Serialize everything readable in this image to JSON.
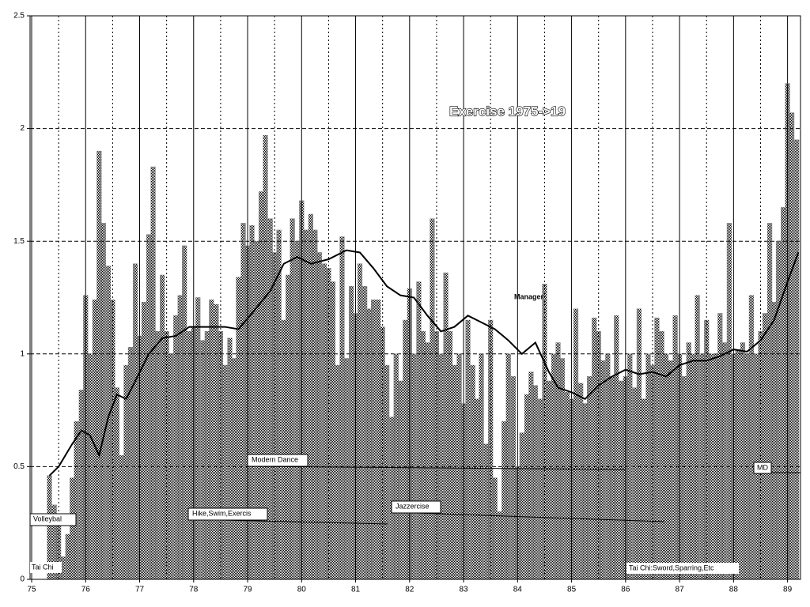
{
  "chart_data": [
    {
      "type": "bar",
      "title": "Exercise 1975->19",
      "color": "#808080",
      "xlim": [
        75,
        89.24
      ],
      "ylim": [
        0,
        2.5
      ],
      "xticks": [
        75,
        76,
        77,
        78,
        79,
        80,
        81,
        82,
        83,
        84,
        85,
        86,
        87,
        88,
        89
      ],
      "yticks": [
        0,
        0.5,
        1,
        1.5,
        2,
        2.5
      ],
      "grid": true,
      "annotations": [
        "Manager",
        "Modern Dance",
        "MD",
        "Jazzercise",
        "Hike,Swim,Exercis",
        "Volleybal",
        "Tai Chi",
        "Tai Chi:Sword,Sparring,Etc"
      ],
      "x": [
        75.33,
        75.42,
        75.5,
        75.58,
        75.67,
        75.75,
        75.83,
        75.92,
        76,
        76.08,
        76.17,
        76.25,
        76.33,
        76.42,
        76.5,
        76.58,
        76.67,
        76.75,
        76.83,
        76.92,
        77,
        77.08,
        77.17,
        77.25,
        77.33,
        77.42,
        77.5,
        77.58,
        77.67,
        77.75,
        77.83,
        77.92,
        78,
        78.08,
        78.17,
        78.25,
        78.33,
        78.42,
        78.5,
        78.58,
        78.67,
        78.75,
        78.83,
        78.92,
        79,
        79.08,
        79.17,
        79.25,
        79.33,
        79.42,
        79.5,
        79.58,
        79.67,
        79.75,
        79.83,
        79.92,
        80,
        80.08,
        80.17,
        80.25,
        80.33,
        80.42,
        80.5,
        80.58,
        80.67,
        80.75,
        80.83,
        80.92,
        81,
        81.08,
        81.17,
        81.25,
        81.33,
        81.42,
        81.5,
        81.58,
        81.67,
        81.75,
        81.83,
        81.92,
        82,
        82.08,
        82.17,
        82.25,
        82.33,
        82.42,
        82.5,
        82.58,
        82.67,
        82.75,
        82.83,
        82.92,
        83,
        83.08,
        83.17,
        83.25,
        83.33,
        83.42,
        83.5,
        83.58,
        83.67,
        83.75,
        83.83,
        83.92,
        84,
        84.08,
        84.17,
        84.25,
        84.33,
        84.42,
        84.5,
        84.58,
        84.67,
        84.75,
        84.83,
        84.92,
        85,
        85.08,
        85.17,
        85.25,
        85.33,
        85.42,
        85.5,
        85.58,
        85.67,
        85.75,
        85.83,
        85.92,
        86,
        86.08,
        86.17,
        86.25,
        86.33,
        86.42,
        86.5,
        86.58,
        86.67,
        86.75,
        86.83,
        86.92,
        87,
        87.08,
        87.17,
        87.25,
        87.33,
        87.42,
        87.5,
        87.58,
        87.67,
        87.75,
        87.83,
        87.92,
        88,
        88.08,
        88.17,
        88.25,
        88.33,
        88.42,
        88.5,
        88.58,
        88.67,
        88.75,
        88.83,
        88.92,
        89,
        89.08,
        89.17
      ],
      "values": [
        0.46,
        0.33,
        0.25,
        0.1,
        0.2,
        0.45,
        0.7,
        0.84,
        1.26,
        1.0,
        1.24,
        1.9,
        1.58,
        1.39,
        1.24,
        0.85,
        0.55,
        0.95,
        1.03,
        1.4,
        1.08,
        1.23,
        1.53,
        1.83,
        1.1,
        1.35,
        1.1,
        1.0,
        1.17,
        1.26,
        1.48,
        1.1,
        1.12,
        1.25,
        1.06,
        1.1,
        1.24,
        1.22,
        1.1,
        0.95,
        1.07,
        0.98,
        1.34,
        1.58,
        1.48,
        1.57,
        1.5,
        1.72,
        1.97,
        1.6,
        1.45,
        1.55,
        1.15,
        1.35,
        1.6,
        1.5,
        1.68,
        1.55,
        1.62,
        1.55,
        1.45,
        1.4,
        1.38,
        1.32,
        0.95,
        1.52,
        0.98,
        1.3,
        1.18,
        1.4,
        1.3,
        1.2,
        1.24,
        1.24,
        1.12,
        0.95,
        0.72,
        1.0,
        0.88,
        1.15,
        1.29,
        1.0,
        1.32,
        1.1,
        1.05,
        1.6,
        1.1,
        1.0,
        1.36,
        1.1,
        0.95,
        1.0,
        0.78,
        1.15,
        0.95,
        0.8,
        1.0,
        0.6,
        1.15,
        0.45,
        0.3,
        0.7,
        1.0,
        0.9,
        0.5,
        0.65,
        0.82,
        0.92,
        0.86,
        0.8,
        1.31,
        0.88,
        1.0,
        1.05,
        0.98,
        0.83,
        0.8,
        1.2,
        0.87,
        0.78,
        0.9,
        1.16,
        1.1,
        0.97,
        1.0,
        0.9,
        1.17,
        0.88,
        0.9,
        1.0,
        0.85,
        1.2,
        0.8,
        1.0,
        0.95,
        1.16,
        1.1,
        1.0,
        0.97,
        1.17,
        1.0,
        0.9,
        1.05,
        1.0,
        1.26,
        1.0,
        1.15,
        1.0,
        1.0,
        1.18,
        1.05,
        1.58,
        1.0,
        1.02,
        1.05,
        1.0,
        1.26,
        1.0,
        1.1,
        1.18,
        1.58,
        1.23,
        1.5,
        1.65,
        2.2,
        2.07,
        1.95
      ]
    },
    {
      "type": "line",
      "color": "#000000",
      "x": [
        75.33,
        75.5,
        75.75,
        75.92,
        76.08,
        76.25,
        76.42,
        76.58,
        76.75,
        76.92,
        77.17,
        77.42,
        77.67,
        77.92,
        78.25,
        78.58,
        78.83,
        79.08,
        79.42,
        79.67,
        79.92,
        80.17,
        80.5,
        80.83,
        81.08,
        81.33,
        81.58,
        81.83,
        82.08,
        82.33,
        82.58,
        82.83,
        83.08,
        83.33,
        83.58,
        83.83,
        84.08,
        84.33,
        84.58,
        84.75,
        85,
        85.25,
        85.5,
        85.75,
        86,
        86.25,
        86.5,
        86.75,
        87,
        87.25,
        87.5,
        87.75,
        88,
        88.25,
        88.5,
        88.75,
        89,
        89.2
      ],
      "values": [
        0.46,
        0.5,
        0.6,
        0.66,
        0.64,
        0.55,
        0.72,
        0.82,
        0.8,
        0.88,
        1.0,
        1.07,
        1.08,
        1.12,
        1.12,
        1.12,
        1.11,
        1.18,
        1.28,
        1.4,
        1.43,
        1.4,
        1.42,
        1.46,
        1.45,
        1.38,
        1.3,
        1.26,
        1.25,
        1.17,
        1.1,
        1.12,
        1.17,
        1.14,
        1.11,
        1.06,
        1.0,
        1.05,
        0.92,
        0.85,
        0.83,
        0.8,
        0.86,
        0.9,
        0.93,
        0.91,
        0.92,
        0.9,
        0.95,
        0.97,
        0.97,
        0.99,
        1.02,
        1.01,
        1.06,
        1.15,
        1.32,
        1.45
      ]
    }
  ]
}
